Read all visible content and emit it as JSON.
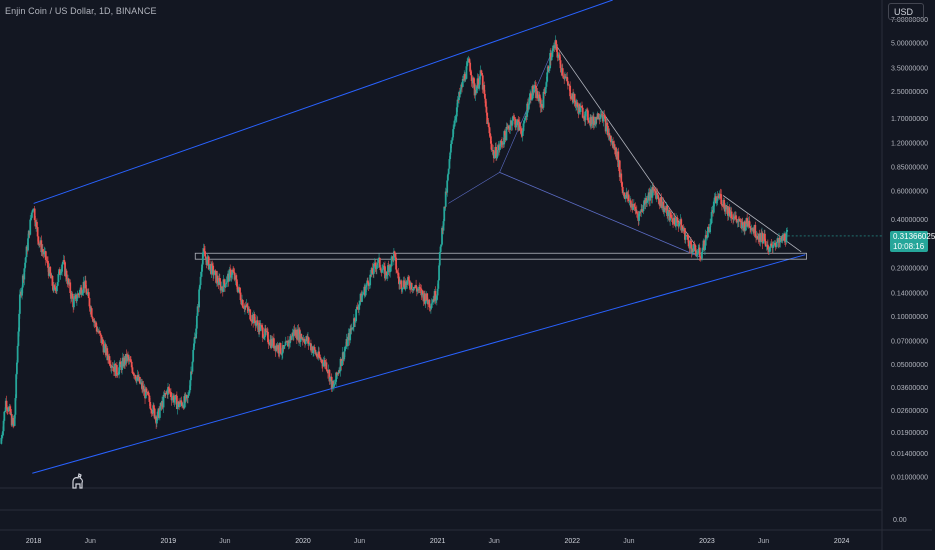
{
  "header": {
    "title": "Enjin Coin / US Dollar, 1D, BINANCE",
    "currency": "USD"
  },
  "price_badge": {
    "price": "0.31366025",
    "countdown": "10:08:16",
    "color": "#26a69a"
  },
  "colors": {
    "background": "#131722",
    "up": "#26a69a",
    "down": "#ef5350",
    "channel": "#2962ff",
    "trendline": "#b2b5be",
    "axis_text": "#b2b5be"
  },
  "chart_data": {
    "type": "candlestick",
    "title": "Enjin Coin / US Dollar, 1D, BINANCE",
    "y_scale": "log",
    "ylim": [
      0.0085,
      9.2
    ],
    "xlim": [
      2017.75,
      2024.3
    ],
    "y_ticks": [
      {
        "value": 7.0,
        "label": "7.00000000"
      },
      {
        "value": 5.0,
        "label": "5.00000000"
      },
      {
        "value": 3.5,
        "label": "3.50000000"
      },
      {
        "value": 2.5,
        "label": "2.50000000"
      },
      {
        "value": 1.7,
        "label": "1.70000000"
      },
      {
        "value": 1.2,
        "label": "1.20000000"
      },
      {
        "value": 0.85,
        "label": "0.85000000"
      },
      {
        "value": 0.6,
        "label": "0.60000000"
      },
      {
        "value": 0.4,
        "label": "0.40000000"
      },
      {
        "value": 0.2,
        "label": "0.20000000"
      },
      {
        "value": 0.14,
        "label": "0.14000000"
      },
      {
        "value": 0.1,
        "label": "0.10000000"
      },
      {
        "value": 0.07,
        "label": "0.07000000"
      },
      {
        "value": 0.05,
        "label": "0.05000000"
      },
      {
        "value": 0.036,
        "label": "0.03600000"
      },
      {
        "value": 0.026,
        "label": "0.02600000"
      },
      {
        "value": 0.019,
        "label": "0.01900000"
      },
      {
        "value": 0.014,
        "label": "0.01400000"
      },
      {
        "value": 0.01,
        "label": "0.01000000"
      }
    ],
    "x_ticks": [
      {
        "value": 2018.0,
        "label": "2018"
      },
      {
        "value": 2018.42,
        "label": "Jun"
      },
      {
        "value": 2019.0,
        "label": "2019"
      },
      {
        "value": 2019.42,
        "label": "Jun"
      },
      {
        "value": 2020.0,
        "label": "2020"
      },
      {
        "value": 2020.42,
        "label": "Jun"
      },
      {
        "value": 2021.0,
        "label": "2021"
      },
      {
        "value": 2021.42,
        "label": "Jun"
      },
      {
        "value": 2022.0,
        "label": "2022"
      },
      {
        "value": 2022.42,
        "label": "Jun"
      },
      {
        "value": 2023.0,
        "label": "2023"
      },
      {
        "value": 2023.42,
        "label": "Jun"
      },
      {
        "value": 2024.0,
        "label": "2024"
      }
    ],
    "lower_pane_tick": {
      "value": 0.0,
      "label": "0.00"
    },
    "current_price": 0.31366025,
    "price_path": [
      [
        2017.76,
        0.016
      ],
      [
        2017.8,
        0.03
      ],
      [
        2017.86,
        0.02
      ],
      [
        2017.9,
        0.12
      ],
      [
        2017.96,
        0.28
      ],
      [
        2018.0,
        0.5
      ],
      [
        2018.04,
        0.3
      ],
      [
        2018.1,
        0.22
      ],
      [
        2018.16,
        0.14
      ],
      [
        2018.22,
        0.22
      ],
      [
        2018.3,
        0.12
      ],
      [
        2018.38,
        0.16
      ],
      [
        2018.46,
        0.09
      ],
      [
        2018.54,
        0.06
      ],
      [
        2018.62,
        0.045
      ],
      [
        2018.7,
        0.055
      ],
      [
        2018.78,
        0.04
      ],
      [
        2018.86,
        0.03
      ],
      [
        2018.92,
        0.023
      ],
      [
        2019.0,
        0.035
      ],
      [
        2019.08,
        0.028
      ],
      [
        2019.15,
        0.03
      ],
      [
        2019.22,
        0.1
      ],
      [
        2019.26,
        0.25
      ],
      [
        2019.32,
        0.2
      ],
      [
        2019.4,
        0.15
      ],
      [
        2019.48,
        0.19
      ],
      [
        2019.56,
        0.12
      ],
      [
        2019.66,
        0.09
      ],
      [
        2019.76,
        0.07
      ],
      [
        2019.86,
        0.06
      ],
      [
        2019.94,
        0.08
      ],
      [
        2020.04,
        0.07
      ],
      [
        2020.12,
        0.055
      ],
      [
        2020.18,
        0.05
      ],
      [
        2020.23,
        0.035
      ],
      [
        2020.28,
        0.05
      ],
      [
        2020.36,
        0.08
      ],
      [
        2020.42,
        0.12
      ],
      [
        2020.5,
        0.17
      ],
      [
        2020.56,
        0.22
      ],
      [
        2020.62,
        0.18
      ],
      [
        2020.68,
        0.24
      ],
      [
        2020.72,
        0.16
      ],
      [
        2020.8,
        0.16
      ],
      [
        2020.88,
        0.14
      ],
      [
        2020.95,
        0.12
      ],
      [
        2021.0,
        0.14
      ],
      [
        2021.04,
        0.35
      ],
      [
        2021.08,
        0.7
      ],
      [
        2021.12,
        1.5
      ],
      [
        2021.16,
        2.2
      ],
      [
        2021.2,
        3.0
      ],
      [
        2021.24,
        3.8
      ],
      [
        2021.28,
        2.5
      ],
      [
        2021.33,
        3.2
      ],
      [
        2021.38,
        1.5
      ],
      [
        2021.42,
        1.0
      ],
      [
        2021.46,
        1.1
      ],
      [
        2021.52,
        1.4
      ],
      [
        2021.56,
        1.7
      ],
      [
        2021.64,
        1.4
      ],
      [
        2021.68,
        2.2
      ],
      [
        2021.72,
        2.6
      ],
      [
        2021.78,
        2.0
      ],
      [
        2021.84,
        4.0
      ],
      [
        2021.88,
        4.8
      ],
      [
        2021.92,
        3.6
      ],
      [
        2021.98,
        2.6
      ],
      [
        2022.04,
        2.0
      ],
      [
        2022.1,
        1.8
      ],
      [
        2022.16,
        1.6
      ],
      [
        2022.22,
        1.9
      ],
      [
        2022.28,
        1.3
      ],
      [
        2022.34,
        1.0
      ],
      [
        2022.38,
        0.6
      ],
      [
        2022.44,
        0.5
      ],
      [
        2022.5,
        0.42
      ],
      [
        2022.56,
        0.55
      ],
      [
        2022.62,
        0.6
      ],
      [
        2022.68,
        0.48
      ],
      [
        2022.74,
        0.4
      ],
      [
        2022.8,
        0.38
      ],
      [
        2022.86,
        0.3
      ],
      [
        2022.9,
        0.26
      ],
      [
        2022.96,
        0.24
      ],
      [
        2023.02,
        0.35
      ],
      [
        2023.06,
        0.5
      ],
      [
        2023.1,
        0.56
      ],
      [
        2023.14,
        0.48
      ],
      [
        2023.2,
        0.42
      ],
      [
        2023.26,
        0.36
      ],
      [
        2023.32,
        0.38
      ],
      [
        2023.38,
        0.32
      ],
      [
        2023.44,
        0.3
      ],
      [
        2023.46,
        0.24
      ],
      [
        2023.5,
        0.29
      ],
      [
        2023.54,
        0.28
      ],
      [
        2023.58,
        0.31
      ],
      [
        2023.6,
        0.31366025
      ]
    ],
    "drawings": {
      "channel_upper": [
        [
          2018.0,
          0.5
        ],
        [
          2022.3,
          9.2
        ]
      ],
      "channel_lower": [
        [
          2017.99,
          0.0105
        ],
        [
          2023.73,
          0.24
        ]
      ],
      "support_zone": [
        0.225,
        0.245
      ],
      "support_zone_x": [
        2019.2,
        2023.74
      ],
      "descending_line_1": [
        [
          2021.88,
          4.8
        ],
        [
          2022.92,
          0.27
        ]
      ],
      "descending_line_2": [
        [
          2023.12,
          0.56
        ],
        [
          2023.7,
          0.25
        ]
      ],
      "wedge_line": [
        [
          2021.46,
          0.78
        ],
        [
          2022.96,
          0.23
        ]
      ]
    }
  }
}
